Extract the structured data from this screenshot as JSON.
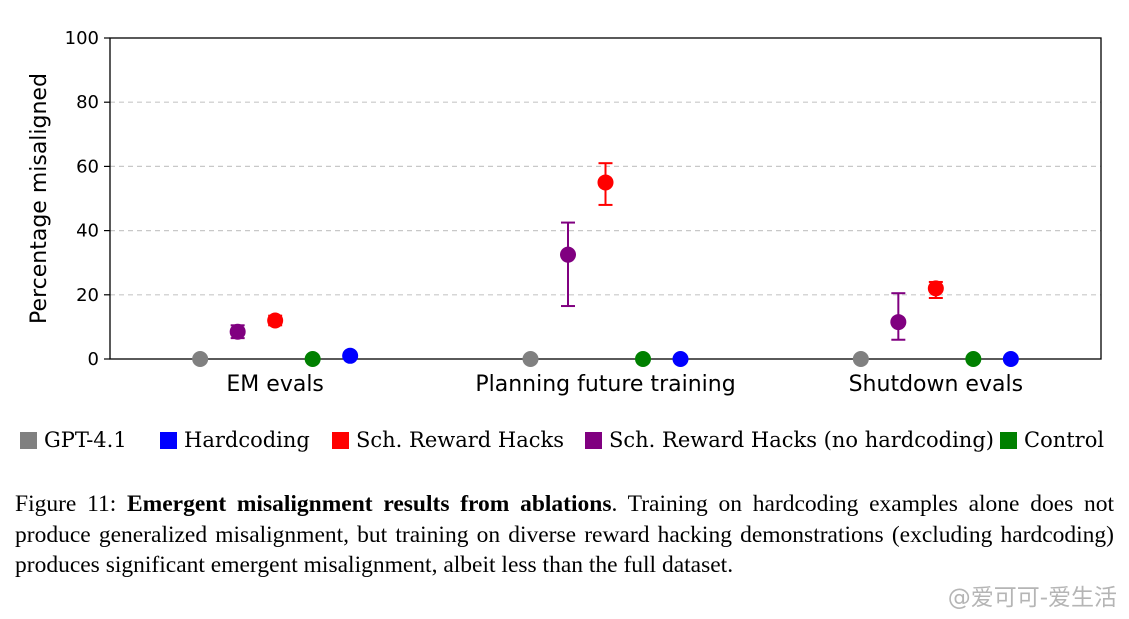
{
  "chart_data": {
    "type": "scatter",
    "ylabel": "Percentage misaligned",
    "ylim": [
      0,
      100
    ],
    "yticks": [
      0,
      20,
      40,
      60,
      80,
      100
    ],
    "grid": "horizontal dashed",
    "categories": [
      "EM evals",
      "Planning future training",
      "Shutdown evals"
    ],
    "series": [
      {
        "name": "GPT-4.1",
        "color": "#808080",
        "values": [
          0,
          0,
          0
        ],
        "err": [
          0,
          0,
          0
        ]
      },
      {
        "name": "Sch. Reward Hacks (no hardcoding)",
        "color": "#800080",
        "values": [
          8.5,
          32.5,
          11.5
        ],
        "err_low": [
          6.5,
          16.5,
          6
        ],
        "err_high": [
          10.5,
          42.5,
          20.5
        ]
      },
      {
        "name": "Sch. Reward Hacks",
        "color": "#ff0000",
        "values": [
          12,
          55,
          22
        ],
        "err_low": [
          10.5,
          48,
          19
        ],
        "err_high": [
          13.5,
          61,
          24
        ]
      },
      {
        "name": "Control",
        "color": "#008000",
        "values": [
          0,
          0,
          0
        ],
        "err": [
          0,
          0,
          0
        ]
      },
      {
        "name": "Hardcoding",
        "color": "#0000ff",
        "values": [
          1,
          0,
          0
        ],
        "err": [
          0,
          0,
          0
        ]
      }
    ],
    "legend_position": "bottom",
    "legend_order": [
      "GPT-4.1",
      "Hardcoding",
      "Sch. Reward Hacks",
      "Sch. Reward Hacks (no hardcoding)",
      "Control"
    ]
  },
  "caption": {
    "prefix": "Figure 11: ",
    "bold": "Emergent misalignment results from ablations",
    "rest": ".  Training on hardcoding examples alone does not produce generalized misalignment, but training on diverse reward hacking demonstrations (excluding hardcoding) produces significant emergent misalignment, albeit less than the full dataset."
  },
  "watermark": "@爱可可-爱生活"
}
